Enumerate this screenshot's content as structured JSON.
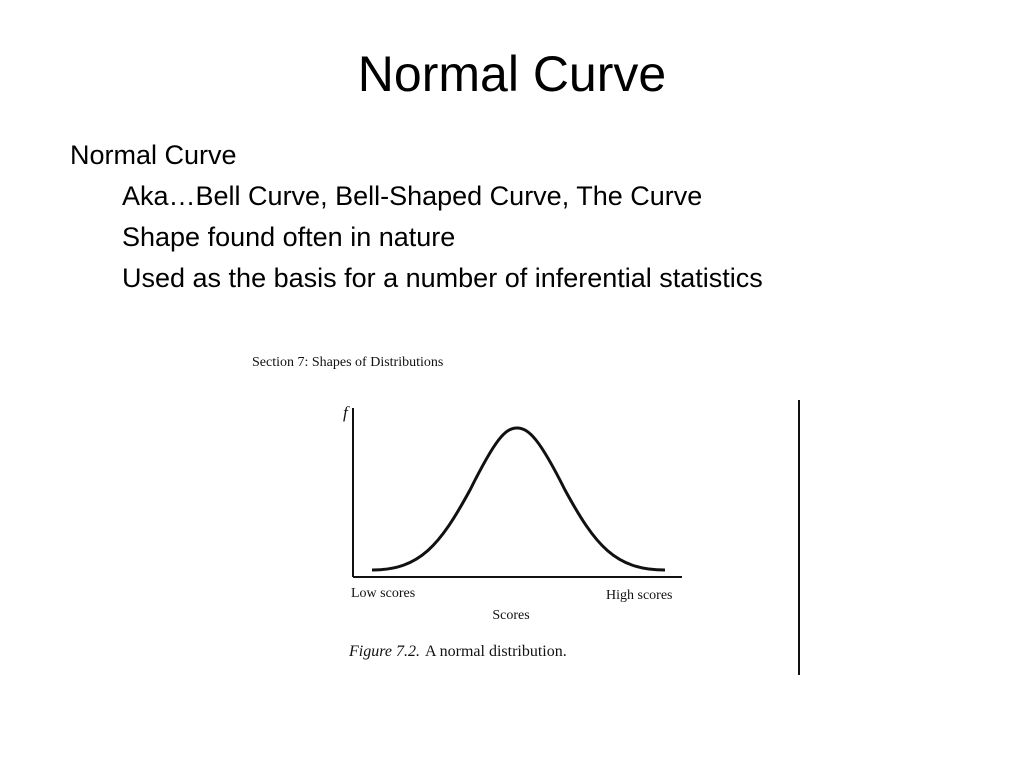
{
  "slide": {
    "title": "Normal Curve",
    "bullets": [
      {
        "text": "Normal Curve",
        "sub": [
          "Aka…Bell Curve, Bell-Shaped Curve, The Curve",
          "Shape found often in nature",
          "Used as the basis for a number of inferential statistics"
        ]
      }
    ],
    "figure": {
      "header": "Section 7: Shapes of Distributions",
      "y_label": "f",
      "x_left_label": "Low scores",
      "x_right_label": "High scores",
      "x_title": "Scores",
      "caption_label": "Figure 7.2.",
      "caption_text": "A normal distribution."
    }
  }
}
